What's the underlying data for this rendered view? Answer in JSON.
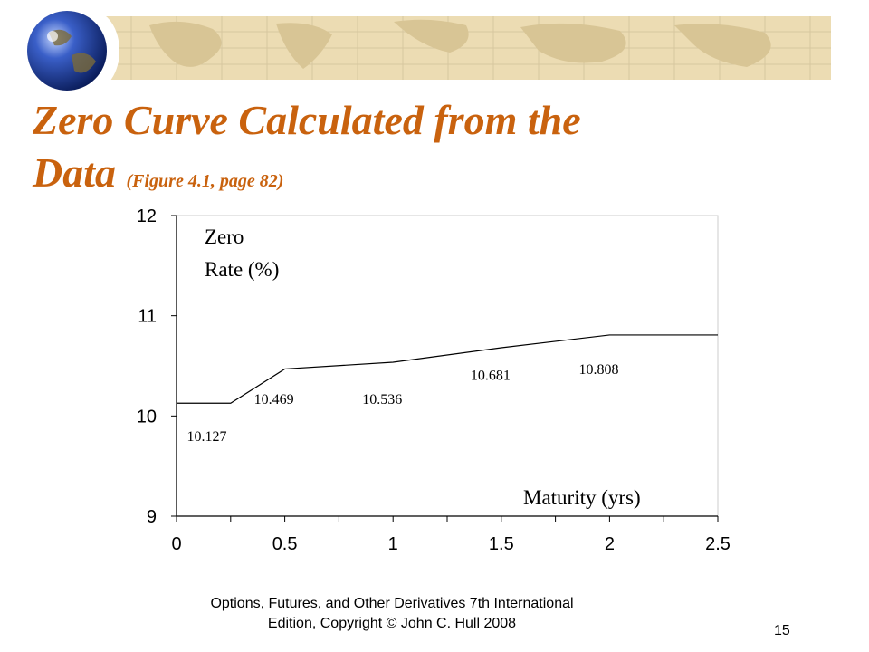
{
  "slide": {
    "title_line1": "Zero Curve Calculated from the",
    "title_line2": "Data",
    "title_ref": "(Figure 4.1, page 82)",
    "footer_line1": "Options, Futures, and Other Derivatives 7th International",
    "footer_line2": "Edition, Copyright © John C. Hull 2008",
    "page_number": "15",
    "title_color": "#c9620e",
    "banner_color": "#ecdcb3"
  },
  "chart_data": {
    "type": "line",
    "title": "",
    "ylabel": "Zero Rate (%)",
    "xlabel": "Maturity (yrs)",
    "xlim": [
      0,
      2.5
    ],
    "ylim": [
      9,
      12
    ],
    "x_ticks": [
      0,
      0.5,
      1,
      1.5,
      2,
      2.5
    ],
    "y_ticks": [
      9,
      10,
      11,
      12
    ],
    "x_tick_labels": [
      "0",
      "0.5",
      "1",
      "1.5",
      "2",
      "2.5"
    ],
    "y_tick_labels": [
      "9",
      "10",
      "11",
      "12"
    ],
    "grid": false,
    "series": [
      {
        "x": [
          0,
          0.25,
          0.5,
          1,
          1.5,
          2,
          2.5
        ],
        "y": [
          10.127,
          10.127,
          10.469,
          10.536,
          10.681,
          10.808,
          10.808
        ]
      }
    ],
    "annotations": [
      {
        "text": "10.127",
        "x": 0.14,
        "y": 9.75
      },
      {
        "text": "10.469",
        "x": 0.45,
        "y": 10.12
      },
      {
        "text": "10.536",
        "x": 0.95,
        "y": 10.12
      },
      {
        "text": "10.681",
        "x": 1.45,
        "y": 10.36
      },
      {
        "text": "10.808",
        "x": 1.95,
        "y": 10.42
      }
    ]
  }
}
